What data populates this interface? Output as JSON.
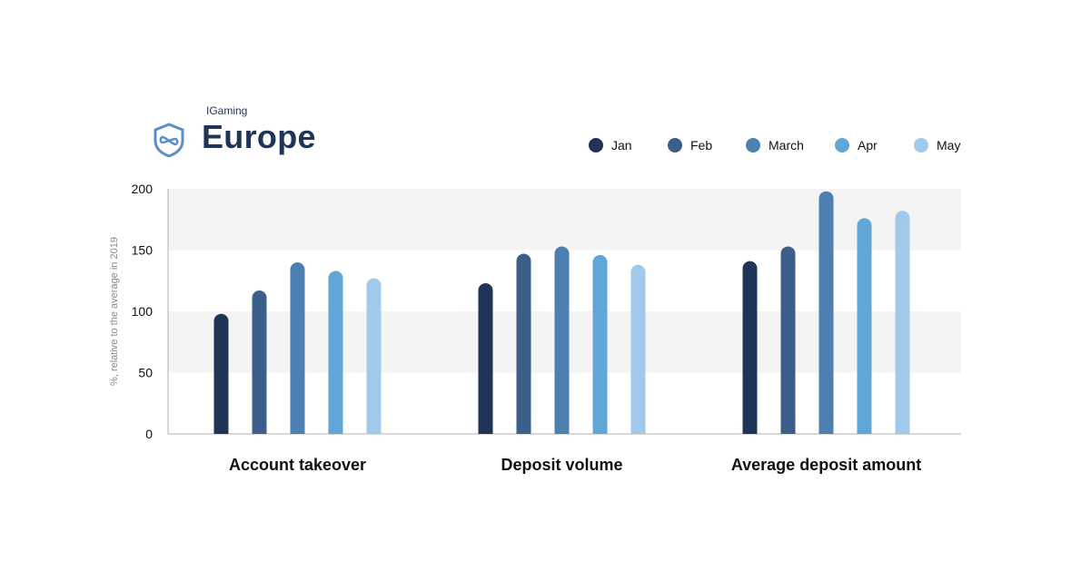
{
  "header": {
    "subtitle": "IGaming",
    "title": "Europe"
  },
  "colors": {
    "title": "#1f3557",
    "logo": "#5b8fc8",
    "band": "#f4f4f4",
    "axis": "#b0b0b0"
  },
  "legend": [
    {
      "label": "Jan",
      "color": "#1f3557"
    },
    {
      "label": "Feb",
      "color": "#3b5f8a"
    },
    {
      "label": "March",
      "color": "#4d80b0"
    },
    {
      "label": "Apr",
      "color": "#62a6d8"
    },
    {
      "label": "May",
      "color": "#a0c9ec"
    }
  ],
  "chart_data": {
    "type": "bar",
    "categories": [
      "Account takeover",
      "Deposit volume",
      "Average deposit amount"
    ],
    "series": [
      {
        "name": "Jan",
        "values": [
          98,
          123,
          141
        ]
      },
      {
        "name": "Feb",
        "values": [
          117,
          147,
          153
        ]
      },
      {
        "name": "March",
        "values": [
          140,
          153,
          198
        ]
      },
      {
        "name": "Apr",
        "values": [
          133,
          146,
          176
        ]
      },
      {
        "name": "May",
        "values": [
          127,
          138,
          182
        ]
      }
    ],
    "ylabel": "%, relative to the average in 2019",
    "yticks": [
      0,
      50,
      100,
      150,
      200
    ],
    "ylim": [
      0,
      200
    ],
    "legend_position": "top-right",
    "grid": "alternating bands"
  }
}
